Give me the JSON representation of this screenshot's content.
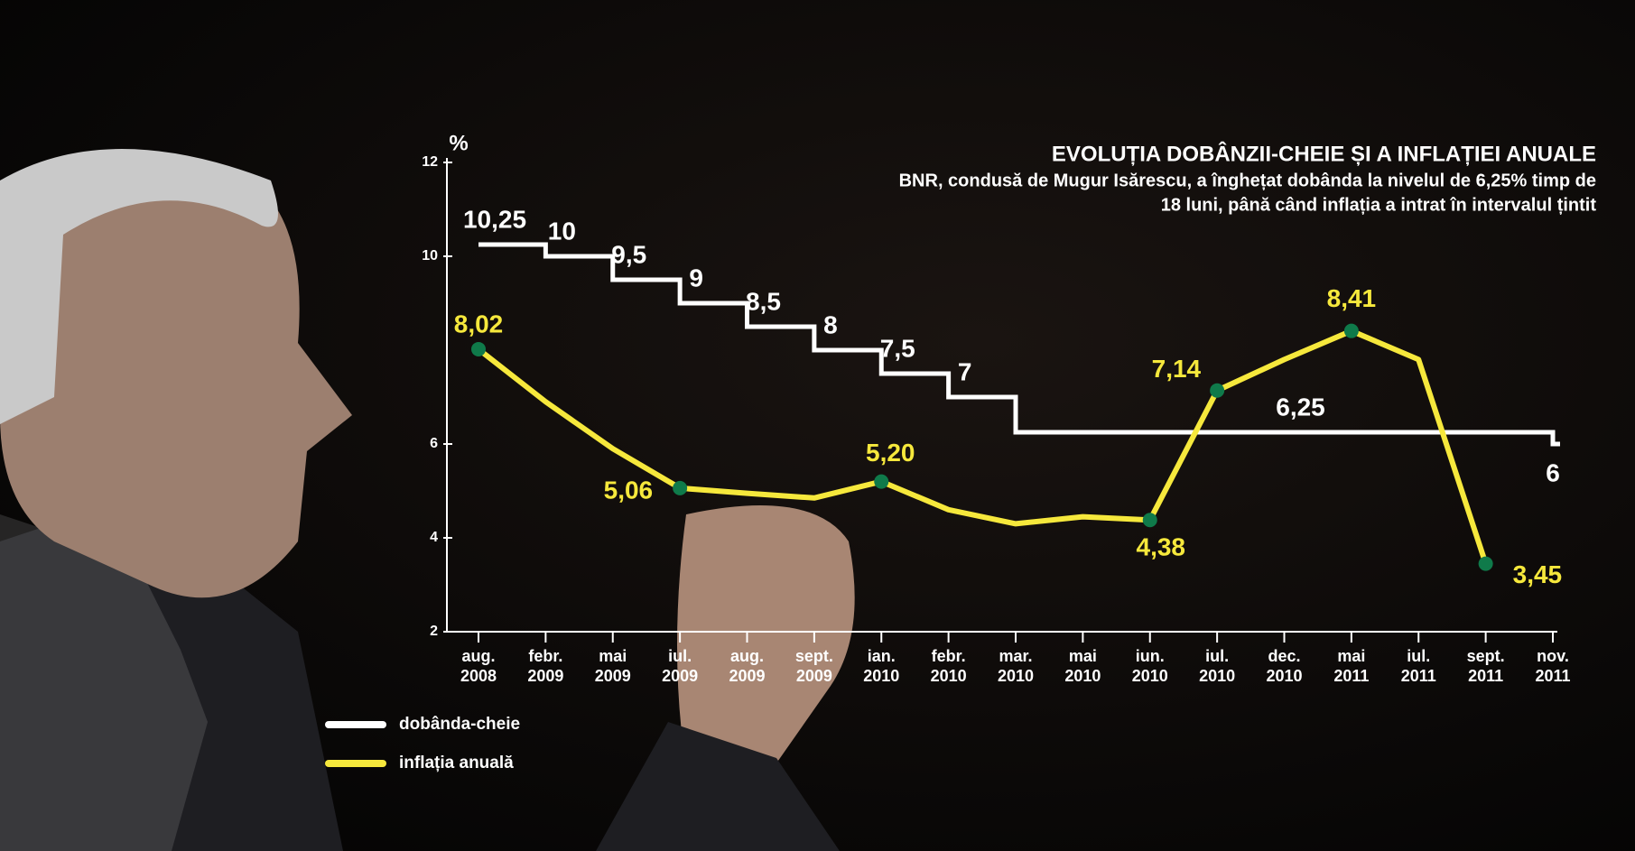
{
  "chart_data": {
    "type": "line",
    "title": "EVOLUȚIA DOBÂNZII-CHEIE ȘI A INFLAȚIEI ANUALE",
    "subtitle": [
      "BNR, condusă de Mugur Isărescu, a înghețat dobânda la nivelul de 6,25% timp de",
      "18 luni, până când inflația a intrat în intervalul țintit"
    ],
    "y_label": "%",
    "categories": [
      "aug. 2008",
      "febr. 2009",
      "mai 2009",
      "iul. 2009",
      "aug. 2009",
      "sept. 2009",
      "ian. 2010",
      "febr. 2010",
      "mar. 2010",
      "mai 2010",
      "iun. 2010",
      "iul. 2010",
      "dec. 2010",
      "mai 2011",
      "iul. 2011",
      "sept. 2011",
      "nov. 2011"
    ],
    "ylim": [
      2,
      12
    ],
    "yticks": [
      2,
      4,
      6,
      10,
      12
    ],
    "series": [
      {
        "name": "dobânda-cheie",
        "color": "#ffffff",
        "step": true,
        "values": [
          10.25,
          10,
          9.5,
          9,
          8.5,
          8,
          7.5,
          7,
          6.25,
          6.25,
          6.25,
          6.25,
          6.25,
          6.25,
          6.25,
          6.25,
          6
        ],
        "value_labels": [
          "10,25",
          "10",
          "9,5",
          "9",
          "8,5",
          "8",
          "7,5",
          "7",
          null,
          null,
          null,
          null,
          "6,25",
          null,
          null,
          null,
          "6"
        ]
      },
      {
        "name": "inflația anuală",
        "color": "#f6e83c",
        "marker_color": "#0f7a4a",
        "values": [
          8.02,
          6.9,
          5.9,
          5.06,
          4.95,
          4.85,
          5.2,
          4.6,
          4.3,
          4.45,
          4.38,
          7.14,
          7.8,
          8.41,
          7.8,
          3.45,
          null
        ],
        "value_labels": [
          "8,02",
          null,
          null,
          "5,06",
          null,
          null,
          "5,20",
          null,
          null,
          null,
          "4,38",
          "7,14",
          null,
          "8,41",
          null,
          "3,45",
          null
        ]
      }
    ],
    "legend": "bottom-left"
  }
}
